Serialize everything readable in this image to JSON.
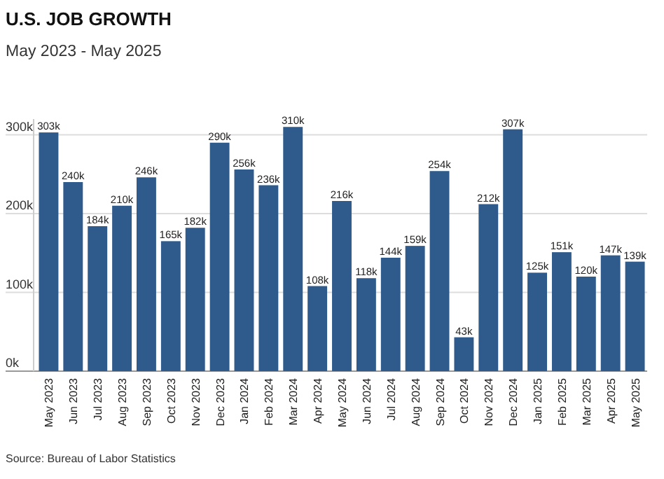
{
  "chart_data": {
    "type": "bar",
    "title": "U.S. JOB GROWTH",
    "subtitle": "May 2023 - May 2025",
    "categories": [
      "May 2023",
      "Jun 2023",
      "Jul 2023",
      "Aug 2023",
      "Sep 2023",
      "Oct 2023",
      "Nov 2023",
      "Dec 2023",
      "Jan 2024",
      "Feb 2024",
      "Mar 2024",
      "Apr 2024",
      "May 2024",
      "Jun 2024",
      "Jul 2024",
      "Aug 2024",
      "Sep 2024",
      "Oct 2024",
      "Nov 2024",
      "Dec 2024",
      "Jan 2025",
      "Feb 2025",
      "Mar 2025",
      "Apr 2025",
      "May 2025"
    ],
    "values": [
      303,
      240,
      184,
      210,
      246,
      165,
      182,
      290,
      256,
      236,
      310,
      108,
      216,
      118,
      144,
      159,
      254,
      43,
      212,
      307,
      125,
      151,
      120,
      147,
      139
    ],
    "value_labels": [
      "303k",
      "240k",
      "184k",
      "210k",
      "246k",
      "165k",
      "182k",
      "290k",
      "256k",
      "236k",
      "310k",
      "108k",
      "216k",
      "118k",
      "144k",
      "159k",
      "254k",
      "43k",
      "212k",
      "307k",
      "125k",
      "151k",
      "120k",
      "147k",
      "139k"
    ],
    "color": "#2f5b8c",
    "ylim": [
      0,
      320
    ],
    "yticks": [
      {
        "value": 0,
        "label": "0k"
      },
      {
        "value": 100,
        "label": "100k"
      },
      {
        "value": 200,
        "label": "200k"
      },
      {
        "value": 300,
        "label": "300k"
      }
    ],
    "grid": "y",
    "annotations": [
      "Source: Bureau of Labor Statistics"
    ]
  }
}
